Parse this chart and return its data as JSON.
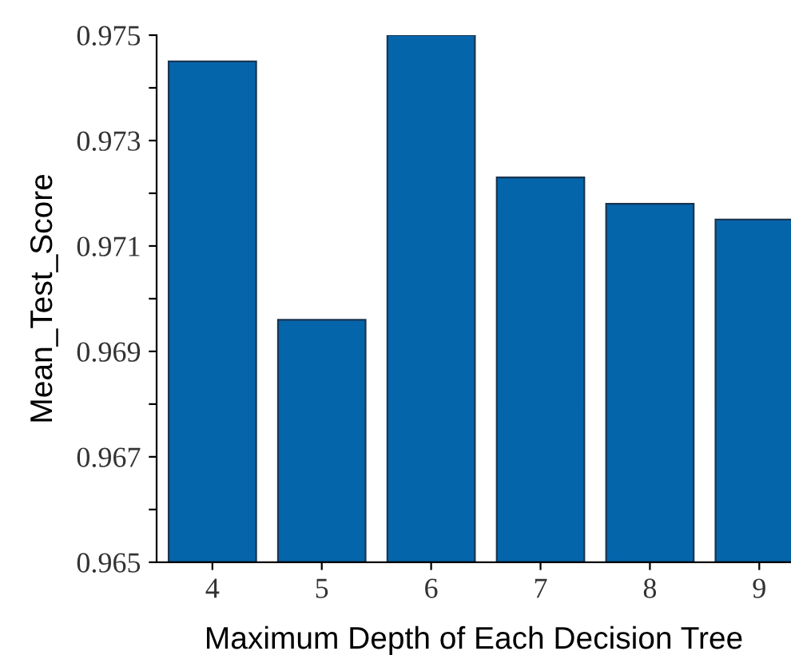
{
  "chart_data": {
    "type": "bar",
    "xlabel": "Maximum Depth of Each Decision Tree",
    "ylabel": "Mean_Test_Score",
    "categories": [
      "4",
      "5",
      "6",
      "7",
      "8",
      "9"
    ],
    "values": [
      0.9745,
      0.9696,
      0.975,
      0.9723,
      0.9718,
      0.9715
    ],
    "color": "#0565ab",
    "ylim": [
      0.965,
      0.975
    ],
    "yticks": [
      0.965,
      {
        "value": 0.966,
        "label": null
      },
      0.967,
      {
        "value": 0.968,
        "label": null
      },
      0.969,
      {
        "value": 0.97,
        "label": null
      },
      0.971,
      {
        "value": 0.972,
        "label": null
      },
      0.973,
      {
        "value": 0.974,
        "label": null
      },
      0.975
    ],
    "grid": false
  }
}
